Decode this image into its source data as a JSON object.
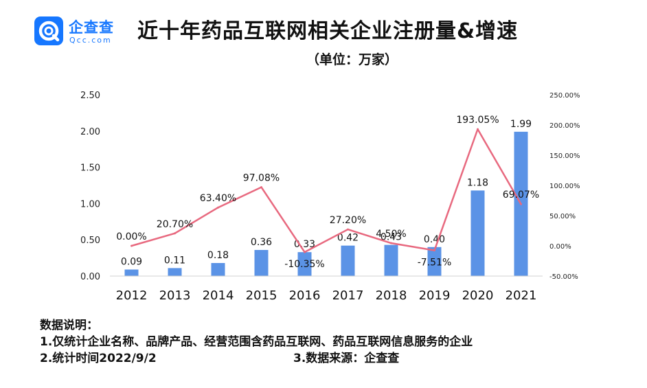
{
  "header": {
    "logo_text": "企查查",
    "logo_sub": "Qcc.com",
    "title": "近十年药品互联网相关企业注册量&增速",
    "subtitle": "（单位：万家）"
  },
  "notes": {
    "heading": "数据说明：",
    "item1": "1.仅统计企业名称、品牌产品、经营范围含药品互联网、药品互联网信息服务的企业",
    "item2": "2.统计时间2022/9/2",
    "item3": "3.数据来源：企查查"
  },
  "colors": {
    "bar": "#5b93e6",
    "line": "#e8697f",
    "logo": "#1677ff"
  },
  "chart_data": {
    "type": "bar",
    "categories": [
      "2012",
      "2013",
      "2014",
      "2015",
      "2016",
      "2017",
      "2018",
      "2019",
      "2020",
      "2021"
    ],
    "series": [
      {
        "type": "bar",
        "values": [
          0.09,
          0.11,
          0.18,
          0.36,
          0.33,
          0.42,
          0.43,
          0.4,
          1.18,
          1.99
        ],
        "value_labels": [
          "0.09",
          "0.11",
          "0.18",
          "0.36",
          "0.33",
          "0.42",
          "0.43",
          "0.40",
          "1.18",
          "1.99"
        ]
      },
      {
        "type": "line",
        "axis": "right",
        "values": [
          0.0,
          20.7,
          63.4,
          97.08,
          -10.35,
          27.2,
          4.5,
          -7.51,
          193.05,
          69.07
        ],
        "value_labels": [
          "0.00%",
          "20.70%",
          "63.40%",
          "97.08%",
          "-10.35%",
          "27.20%",
          "4.50%",
          "-7.51%",
          "193.05%",
          "69.07%"
        ]
      }
    ],
    "y_left": {
      "ylim": [
        0,
        2.5
      ],
      "ticks": [
        "0.00",
        "0.50",
        "1.00",
        "1.50",
        "2.00",
        "2.50"
      ]
    },
    "y_right": {
      "ylim": [
        -50,
        250
      ],
      "ticks": [
        "-50.00%",
        "0.00%",
        "50.00%",
        "100.00%",
        "150.00%",
        "200.00%",
        "250.00%"
      ]
    },
    "grid": false,
    "legend": "none"
  }
}
